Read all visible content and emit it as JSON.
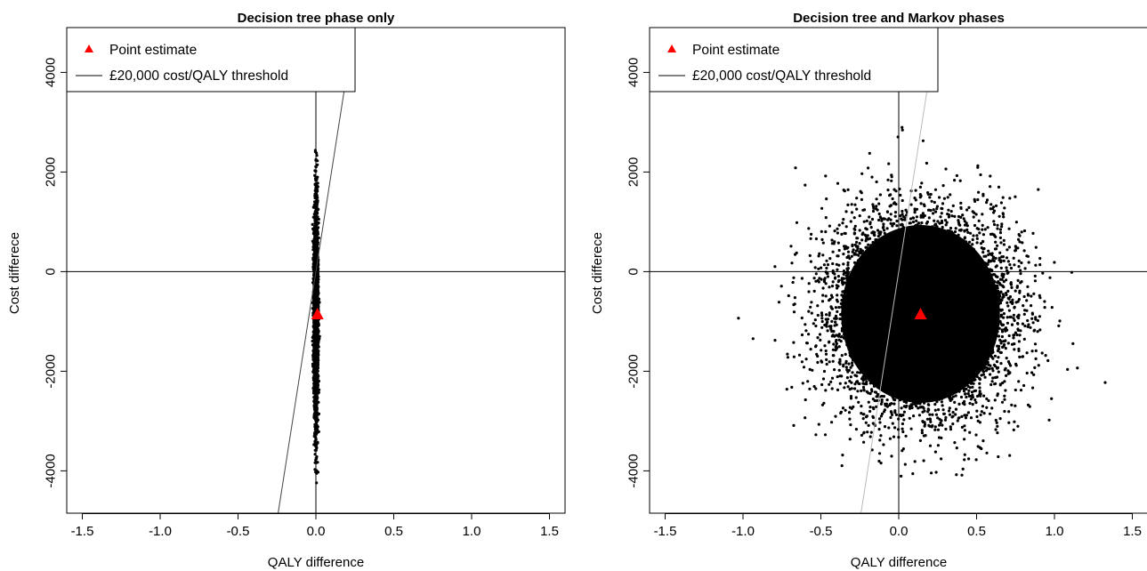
{
  "chart_data": [
    {
      "type": "scatter",
      "title": "Decision tree phase only",
      "xlabel": "QALY difference",
      "ylabel": "Cost differece",
      "xlim": [
        -1.6,
        1.6
      ],
      "ylim": [
        -4850,
        4900
      ],
      "x_ticks": [
        -1.5,
        -1.0,
        -0.5,
        0.0,
        0.5,
        1.0,
        1.5
      ],
      "x_tick_labels": [
        "-1.5",
        "-1.0",
        "-0.5",
        "0.0",
        "0.5",
        "1.0",
        "1.5"
      ],
      "y_ticks": [
        -4000,
        -2000,
        0,
        2000,
        4000
      ],
      "y_tick_labels": [
        "-4000",
        "-2000",
        "0",
        "2000",
        "4000"
      ],
      "reference_lines": {
        "x": 0,
        "y": 0
      },
      "threshold_line": {
        "label": "£20,000 cost/QALY threshold",
        "slope": 20000
      },
      "point_estimate": {
        "label": "Point estimate",
        "x": 0.01,
        "y": -850
      },
      "cloud": {
        "x_mean": 0.0,
        "x_sd": 0.007,
        "y_mean": -850,
        "y_sd": 1050,
        "n": 3500,
        "x_range": [
          -0.04,
          0.04
        ],
        "y_range": [
          -4300,
          3150
        ]
      },
      "legend": {
        "position": "top-left",
        "entries": [
          "Point estimate",
          "£20,000 cost/QALY threshold"
        ]
      },
      "colors": {
        "points": "#000000",
        "point_estimate": "#ff0000",
        "threshold": "#444444"
      }
    },
    {
      "type": "scatter",
      "title": "Decision tree and Markov phases",
      "xlabel": "QALY difference",
      "ylabel": "Cost differece",
      "xlim": [
        -1.6,
        1.6
      ],
      "ylim": [
        -4850,
        4900
      ],
      "x_ticks": [
        -1.5,
        -1.0,
        -0.5,
        0.0,
        0.5,
        1.0,
        1.5
      ],
      "x_tick_labels": [
        "-1.5",
        "-1.0",
        "-0.5",
        "0.0",
        "0.5",
        "1.0",
        "1.5"
      ],
      "y_ticks": [
        -4000,
        -2000,
        0,
        2000,
        4000
      ],
      "y_tick_labels": [
        "-4000",
        "-2000",
        "0",
        "2000",
        "4000"
      ],
      "reference_lines": {
        "x": 0,
        "y": 0
      },
      "threshold_line": {
        "label": "£20,000 cost/QALY threshold",
        "slope": 20000
      },
      "point_estimate": {
        "label": "Point estimate",
        "x": 0.14,
        "y": -850
      },
      "cloud": {
        "x_mean": 0.14,
        "x_sd": 0.3,
        "y_mean": -850,
        "y_sd": 1050,
        "n": 6000,
        "x_range": [
          -1.05,
          1.35
        ],
        "y_range": [
          -4250,
          3150
        ]
      },
      "legend": {
        "position": "top-left",
        "entries": [
          "Point estimate",
          "£20,000 cost/QALY threshold"
        ]
      },
      "colors": {
        "points": "#000000",
        "point_estimate": "#ff0000",
        "threshold": "#bbbbbb"
      }
    }
  ]
}
